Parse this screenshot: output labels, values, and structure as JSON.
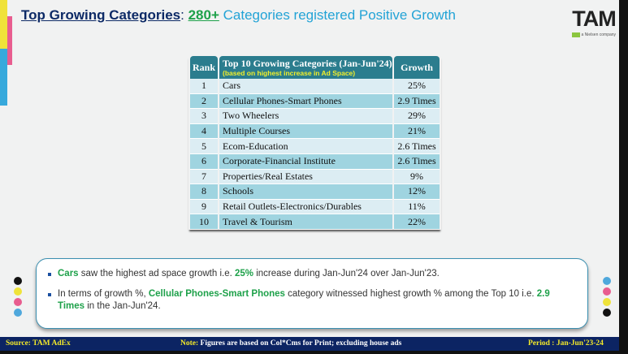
{
  "header": {
    "title_part1": "Top Growing Categories",
    "colon": ": ",
    "count": "280+",
    "title_part2": " Categories registered Positive Growth"
  },
  "logo": {
    "text": "TAM",
    "subtext": "a Nielsen company"
  },
  "table": {
    "headers": {
      "rank": "Rank",
      "category": "Top 10 Growing Categories (Jan-Jun'24)",
      "category_sub": "(based on highest increase in Ad Space)",
      "growth": "Growth"
    },
    "rows": [
      {
        "rank": "1",
        "category": "Cars",
        "growth": "25%"
      },
      {
        "rank": "2",
        "category": "Cellular Phones-Smart Phones",
        "growth": "2.9 Times"
      },
      {
        "rank": "3",
        "category": "Two Wheelers",
        "growth": "29%"
      },
      {
        "rank": "4",
        "category": "Multiple Courses",
        "growth": "21%"
      },
      {
        "rank": "5",
        "category": "Ecom-Education",
        "growth": "2.6 Times"
      },
      {
        "rank": "6",
        "category": "Corporate-Financial Institute",
        "growth": "2.6 Times"
      },
      {
        "rank": "7",
        "category": "Properties/Real Estates",
        "growth": "9%"
      },
      {
        "rank": "8",
        "category": "Schools",
        "growth": "12%"
      },
      {
        "rank": "9",
        "category": "Retail Outlets-Electronics/Durables",
        "growth": "11%"
      },
      {
        "rank": "10",
        "category": "Travel & Tourism",
        "growth": "22%"
      }
    ]
  },
  "summary": {
    "b1": {
      "h1": "Cars",
      "t1": " saw the highest ad space growth i.e. ",
      "h2": "25%",
      "t2": " increase during Jan-Jun'24 over Jan-Jun'23."
    },
    "b2": {
      "t1": "In terms of growth %, ",
      "h1": "Cellular Phones-Smart Phones",
      "t2": " category witnessed highest growth % among the Top 10 i.e. ",
      "h2": "2.9 Times",
      "t3": " in the Jan-Jun'24."
    }
  },
  "footer": {
    "source": "Source: TAM AdEx",
    "note_label": "Note:",
    "note": " Figures are based on Col*Cms for Print; excluding house ads",
    "period": "Period : Jan-Jun'23-24"
  },
  "colors": {
    "navy": "#0c2463",
    "teal": "#2b7d8e",
    "green": "#1ea14a",
    "blue": "#22a3d6"
  }
}
